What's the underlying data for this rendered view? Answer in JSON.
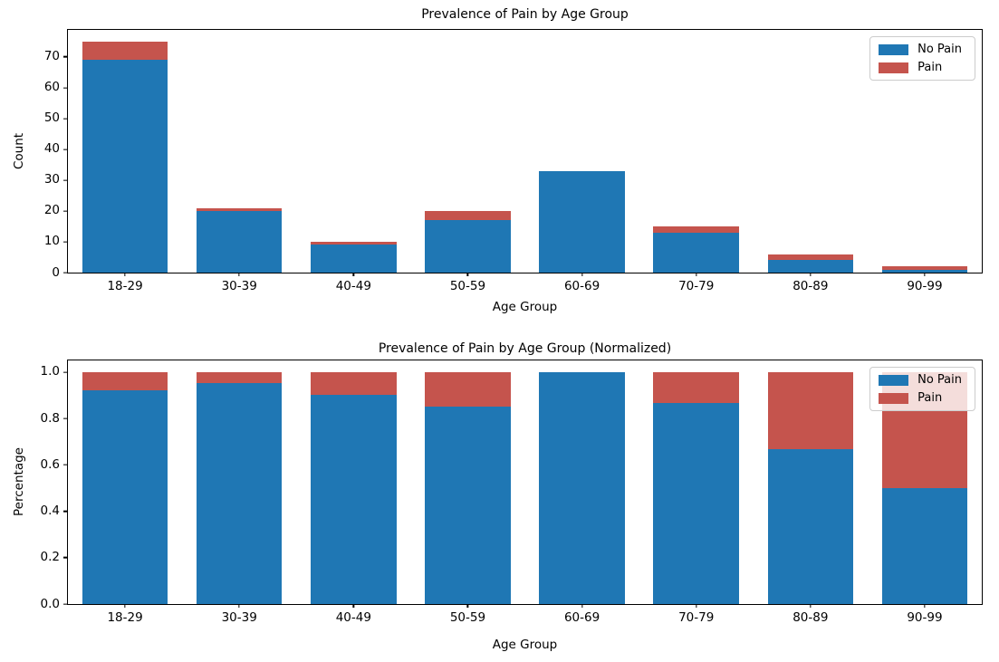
{
  "figure": {
    "background": "#ffffff",
    "text_color": "#000000",
    "no_pain_color": "#1f77b4",
    "pain_color": "#c5544d"
  },
  "chart_data": [
    {
      "type": "bar",
      "stacked": true,
      "title": "Prevalence of Pain by Age Group",
      "xlabel": "Age Group",
      "ylabel": "Count",
      "categories": [
        "18-29",
        "30-39",
        "40-49",
        "50-59",
        "60-69",
        "70-79",
        "80-89",
        "90-99"
      ],
      "series": [
        {
          "name": "No Pain",
          "color": "#1f77b4",
          "values": [
            69,
            20,
            9,
            17,
            33,
            13,
            4,
            1
          ]
        },
        {
          "name": "Pain",
          "color": "#c5544d",
          "values": [
            6,
            1,
            1,
            3,
            0,
            2,
            2,
            1
          ]
        }
      ],
      "totals": [
        75,
        21,
        10,
        20,
        33,
        15,
        6,
        2
      ],
      "ylim": [
        0,
        78.75
      ],
      "yticks": [
        0,
        10,
        20,
        30,
        40,
        50,
        60,
        70
      ],
      "ytick_labels": [
        "0",
        "10",
        "20",
        "30",
        "40",
        "50",
        "60",
        "70"
      ],
      "legend_position": "upper right",
      "grid": false
    },
    {
      "type": "bar",
      "stacked": true,
      "title": "Prevalence of Pain by Age Group (Normalized)",
      "xlabel": "Age Group",
      "ylabel": "Percentage",
      "categories": [
        "18-29",
        "30-39",
        "40-49",
        "50-59",
        "60-69",
        "70-79",
        "80-89",
        "90-99"
      ],
      "series": [
        {
          "name": "No Pain",
          "color": "#1f77b4",
          "values": [
            0.92,
            0.9524,
            0.9,
            0.85,
            1.0,
            0.8667,
            0.6667,
            0.5
          ]
        },
        {
          "name": "Pain",
          "color": "#c5544d",
          "values": [
            0.08,
            0.0476,
            0.1,
            0.15,
            0.0,
            0.1333,
            0.3333,
            0.5
          ]
        }
      ],
      "ylim": [
        0,
        1.05
      ],
      "yticks": [
        0.0,
        0.2,
        0.4,
        0.6,
        0.8,
        1.0
      ],
      "ytick_labels": [
        "0.0",
        "0.2",
        "0.4",
        "0.6",
        "0.8",
        "1.0"
      ],
      "legend_position": "upper right",
      "grid": false
    }
  ]
}
